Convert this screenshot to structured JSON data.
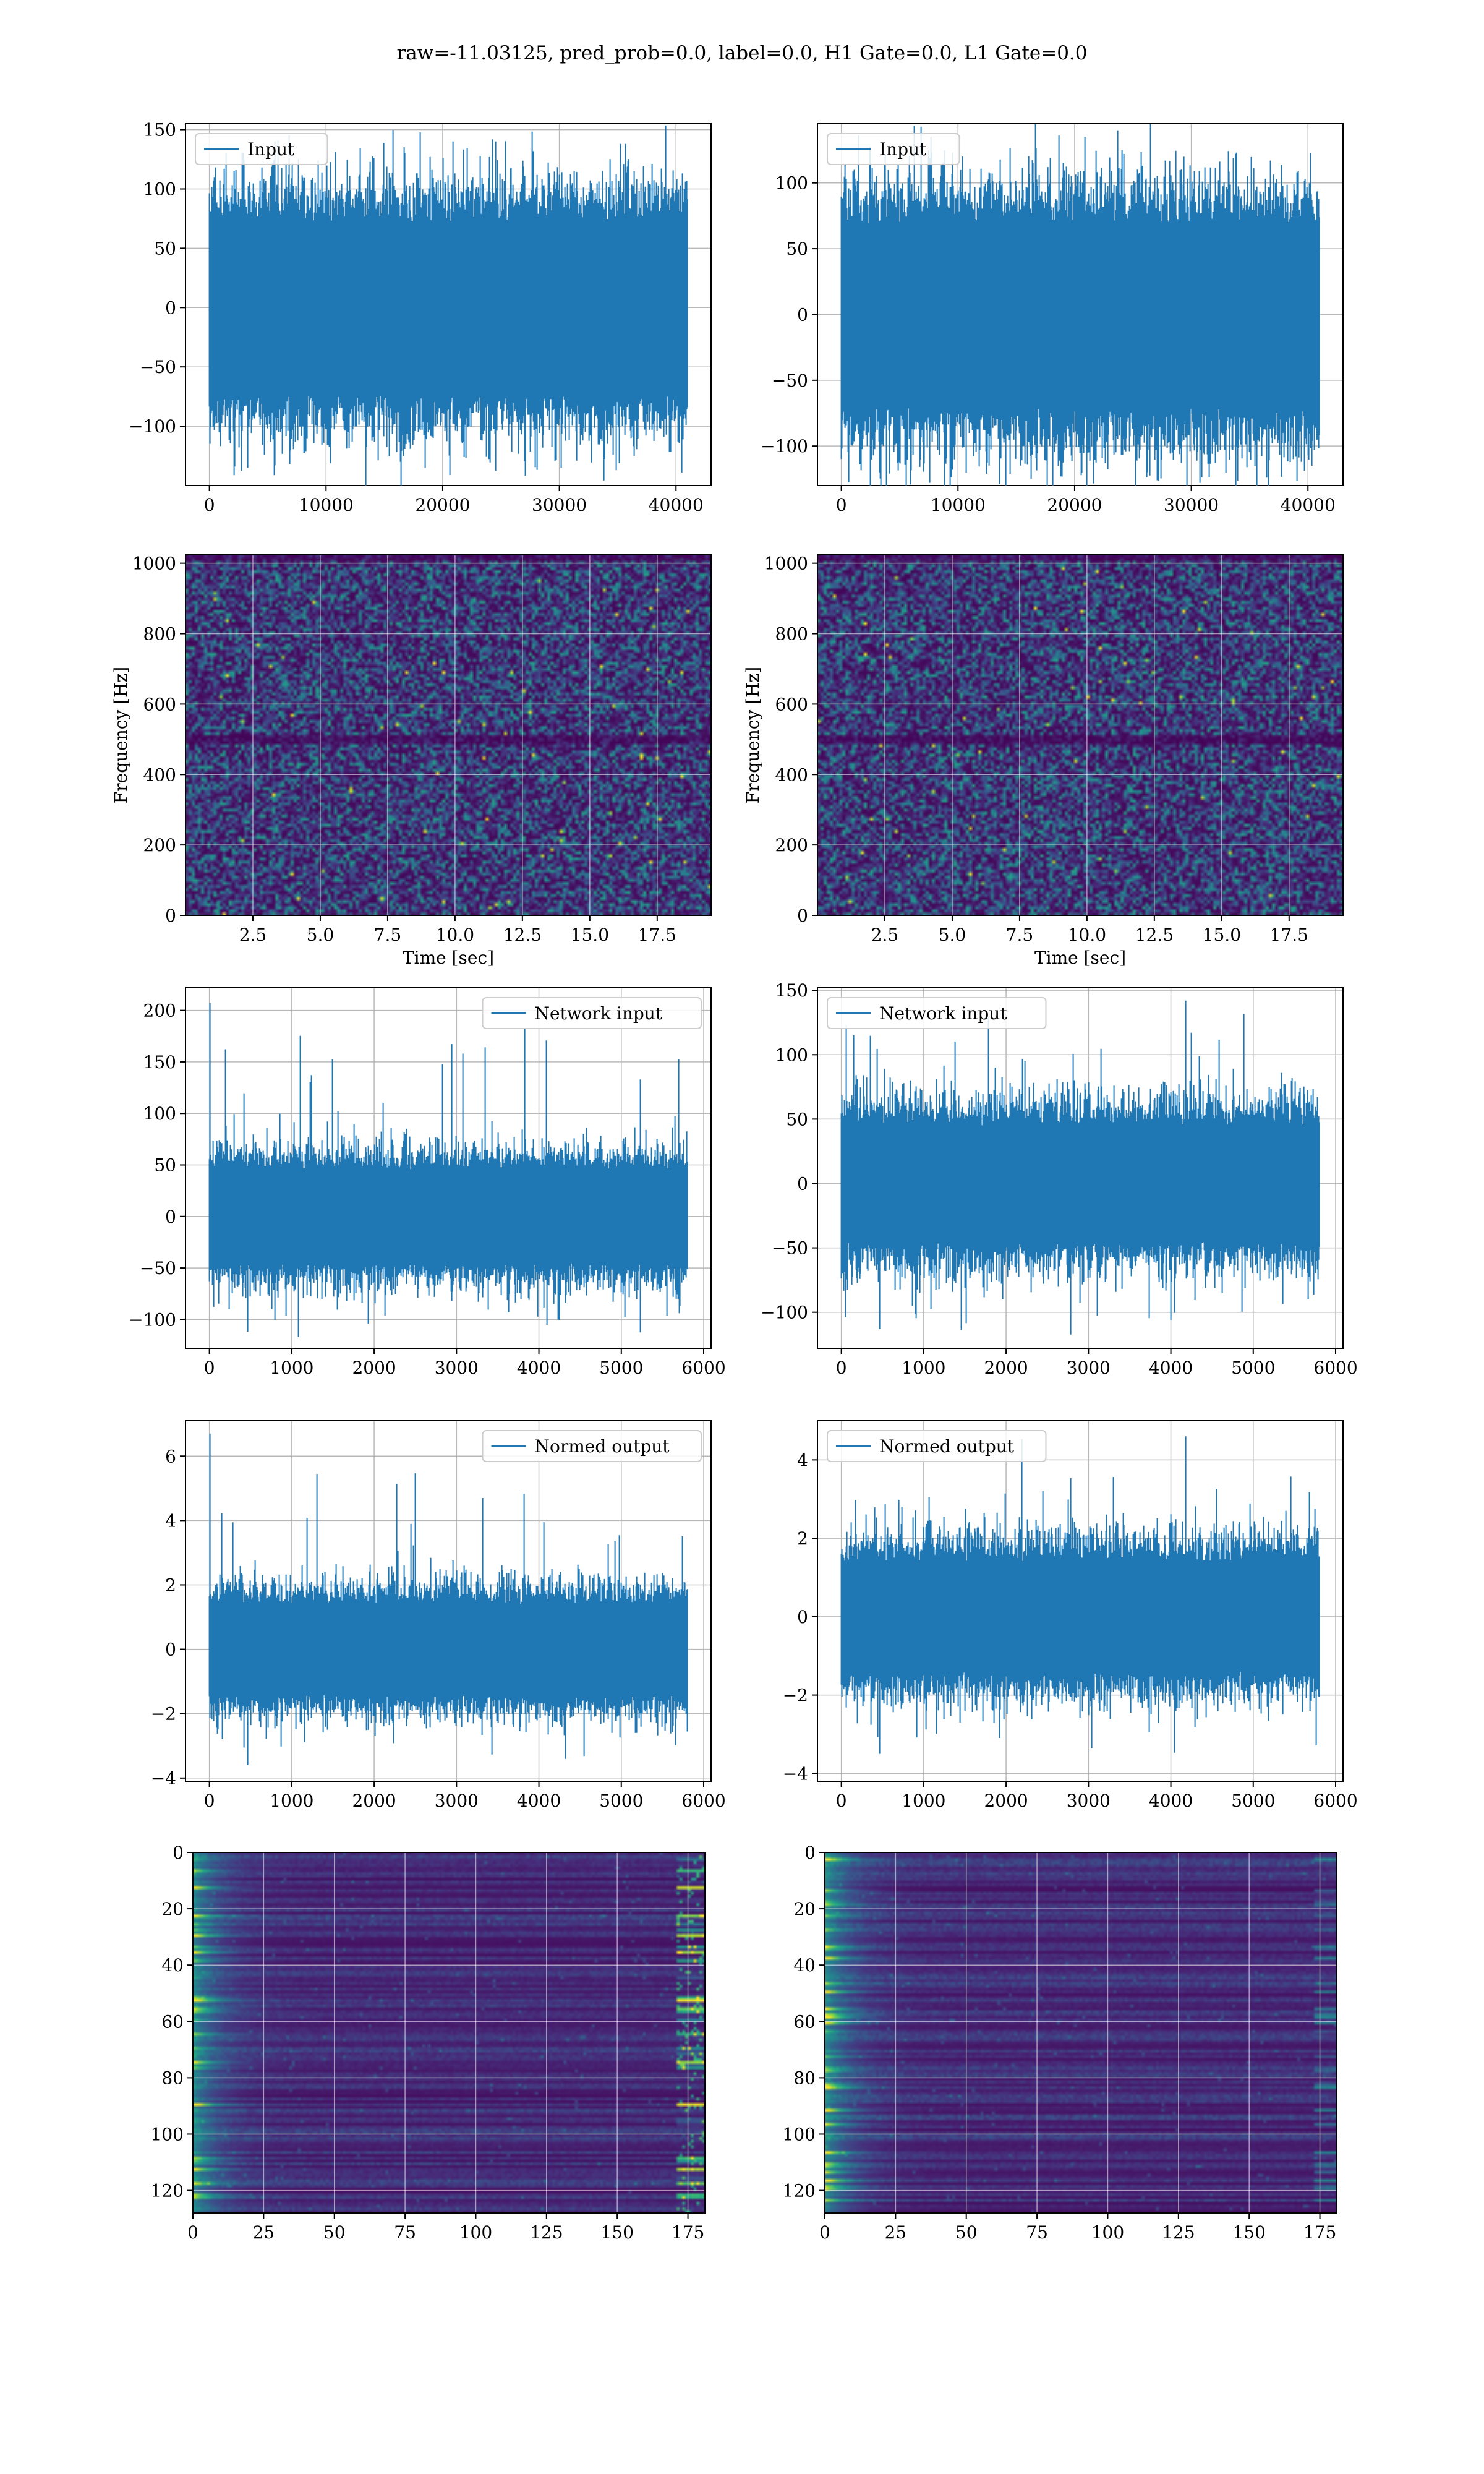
{
  "figure": {
    "title": "raw=-11.03125, pred_prob=0.0, label=0.0, H1 Gate=0.0, L1 Gate=0.0"
  },
  "colors": {
    "line": "#1f77b4",
    "grid": "#b0b0b0",
    "viridis_low": "#440154",
    "viridis_high": "#fde725"
  },
  "chart_data": [
    {
      "id": "h1-input",
      "type": "line",
      "legend": "Input",
      "legend_loc": "upper left",
      "x_range": [
        0,
        40960
      ],
      "ylim": [
        -150,
        155
      ],
      "xticks": [
        0,
        10000,
        20000,
        30000,
        40000
      ],
      "yticks": [
        -100,
        -50,
        0,
        50,
        100,
        150
      ],
      "xlabel": "",
      "ylabel": "",
      "series": [
        {
          "name": "Input",
          "n_points": 40960,
          "envelope": [
            -135,
            140
          ],
          "amplitude_band": [
            -72,
            72
          ]
        }
      ]
    },
    {
      "id": "l1-input",
      "type": "line",
      "legend": "Input",
      "legend_loc": "upper left",
      "x_range": [
        0,
        40960
      ],
      "ylim": [
        -130,
        145
      ],
      "xticks": [
        0,
        10000,
        20000,
        30000,
        40000
      ],
      "yticks": [
        -100,
        -50,
        0,
        50,
        100
      ],
      "xlabel": "",
      "ylabel": "",
      "series": [
        {
          "name": "Input",
          "n_points": 40960,
          "envelope": [
            -120,
            135
          ],
          "amplitude_band": [
            -70,
            68
          ]
        }
      ]
    },
    {
      "id": "h1-spectrogram",
      "type": "heatmap",
      "colormap": "viridis",
      "xlim": [
        0,
        19.5
      ],
      "ylim": [
        0,
        1024
      ],
      "xticks": [
        2.5,
        5.0,
        7.5,
        10.0,
        12.5,
        15.0,
        17.5
      ],
      "yticks": [
        0,
        200,
        400,
        600,
        800,
        1000
      ],
      "xlabel": "Time [sec]",
      "ylabel": "Frequency [Hz]",
      "dark_band_hz": 500
    },
    {
      "id": "l1-spectrogram",
      "type": "heatmap",
      "colormap": "viridis",
      "xlim": [
        0,
        19.5
      ],
      "ylim": [
        0,
        1024
      ],
      "xticks": [
        2.5,
        5.0,
        7.5,
        10.0,
        12.5,
        15.0,
        17.5
      ],
      "yticks": [
        0,
        200,
        400,
        600,
        800,
        1000
      ],
      "xlabel": "Time [sec]",
      "ylabel": "Frequency [Hz]",
      "dark_band_hz": 500
    },
    {
      "id": "h1-network-input",
      "type": "line",
      "legend": "Network input",
      "legend_loc": "upper right",
      "x_range": [
        0,
        5800
      ],
      "ylim": [
        -128,
        222
      ],
      "xticks": [
        0,
        1000,
        2000,
        3000,
        4000,
        5000,
        6000
      ],
      "yticks": [
        -100,
        -50,
        0,
        50,
        100,
        150,
        200
      ],
      "xlabel": "",
      "ylabel": "",
      "series": [
        {
          "name": "Network input",
          "n_points": 5800,
          "envelope": [
            -112,
            207
          ],
          "amplitude_band": [
            -45,
            45
          ]
        }
      ]
    },
    {
      "id": "l1-network-input",
      "type": "line",
      "legend": "Network input",
      "legend_loc": "upper left",
      "x_range": [
        0,
        5800
      ],
      "ylim": [
        -128,
        152
      ],
      "xticks": [
        0,
        1000,
        2000,
        3000,
        4000,
        5000,
        6000
      ],
      "yticks": [
        -100,
        -50,
        0,
        50,
        100,
        150
      ],
      "xlabel": "",
      "ylabel": "",
      "series": [
        {
          "name": "Network input",
          "n_points": 5800,
          "envelope": [
            -113,
            142
          ],
          "amplitude_band": [
            -45,
            45
          ]
        }
      ]
    },
    {
      "id": "h1-normed-output",
      "type": "line",
      "legend": "Normed output",
      "legend_loc": "upper right",
      "x_range": [
        0,
        5800
      ],
      "ylim": [
        -4.1,
        7.1
      ],
      "xticks": [
        0,
        1000,
        2000,
        3000,
        4000,
        5000,
        6000
      ],
      "yticks": [
        -4,
        -2,
        0,
        2,
        4,
        6
      ],
      "xlabel": "",
      "ylabel": "",
      "series": [
        {
          "name": "Normed output",
          "n_points": 5800,
          "envelope": [
            -3.6,
            6.7
          ],
          "amplitude_band": [
            -1.4,
            1.4
          ]
        }
      ]
    },
    {
      "id": "l1-normed-output",
      "type": "line",
      "legend": "Normed output",
      "legend_loc": "upper left",
      "x_range": [
        0,
        5800
      ],
      "ylim": [
        -4.2,
        5.0
      ],
      "xticks": [
        0,
        1000,
        2000,
        3000,
        4000,
        5000,
        6000
      ],
      "yticks": [
        -4,
        -2,
        0,
        2,
        4
      ],
      "xlabel": "",
      "ylabel": "",
      "series": [
        {
          "name": "Normed output",
          "n_points": 5800,
          "envelope": [
            -3.5,
            4.6
          ],
          "amplitude_band": [
            -1.4,
            1.4
          ]
        }
      ]
    },
    {
      "id": "h1-feature-map",
      "type": "heatmap",
      "colormap": "viridis",
      "xlim": [
        0,
        181
      ],
      "ylim": [
        128,
        0
      ],
      "xticks": [
        0,
        25,
        50,
        75,
        100,
        125,
        150,
        175
      ],
      "yticks": [
        0,
        20,
        40,
        60,
        80,
        100,
        120
      ],
      "xlabel": "",
      "ylabel": ""
    },
    {
      "id": "l1-feature-map",
      "type": "heatmap",
      "colormap": "viridis",
      "xlim": [
        0,
        181
      ],
      "ylim": [
        128,
        0
      ],
      "xticks": [
        0,
        25,
        50,
        75,
        100,
        125,
        150,
        175
      ],
      "yticks": [
        0,
        20,
        40,
        60,
        80,
        100,
        120
      ],
      "xlabel": "",
      "ylabel": ""
    }
  ]
}
